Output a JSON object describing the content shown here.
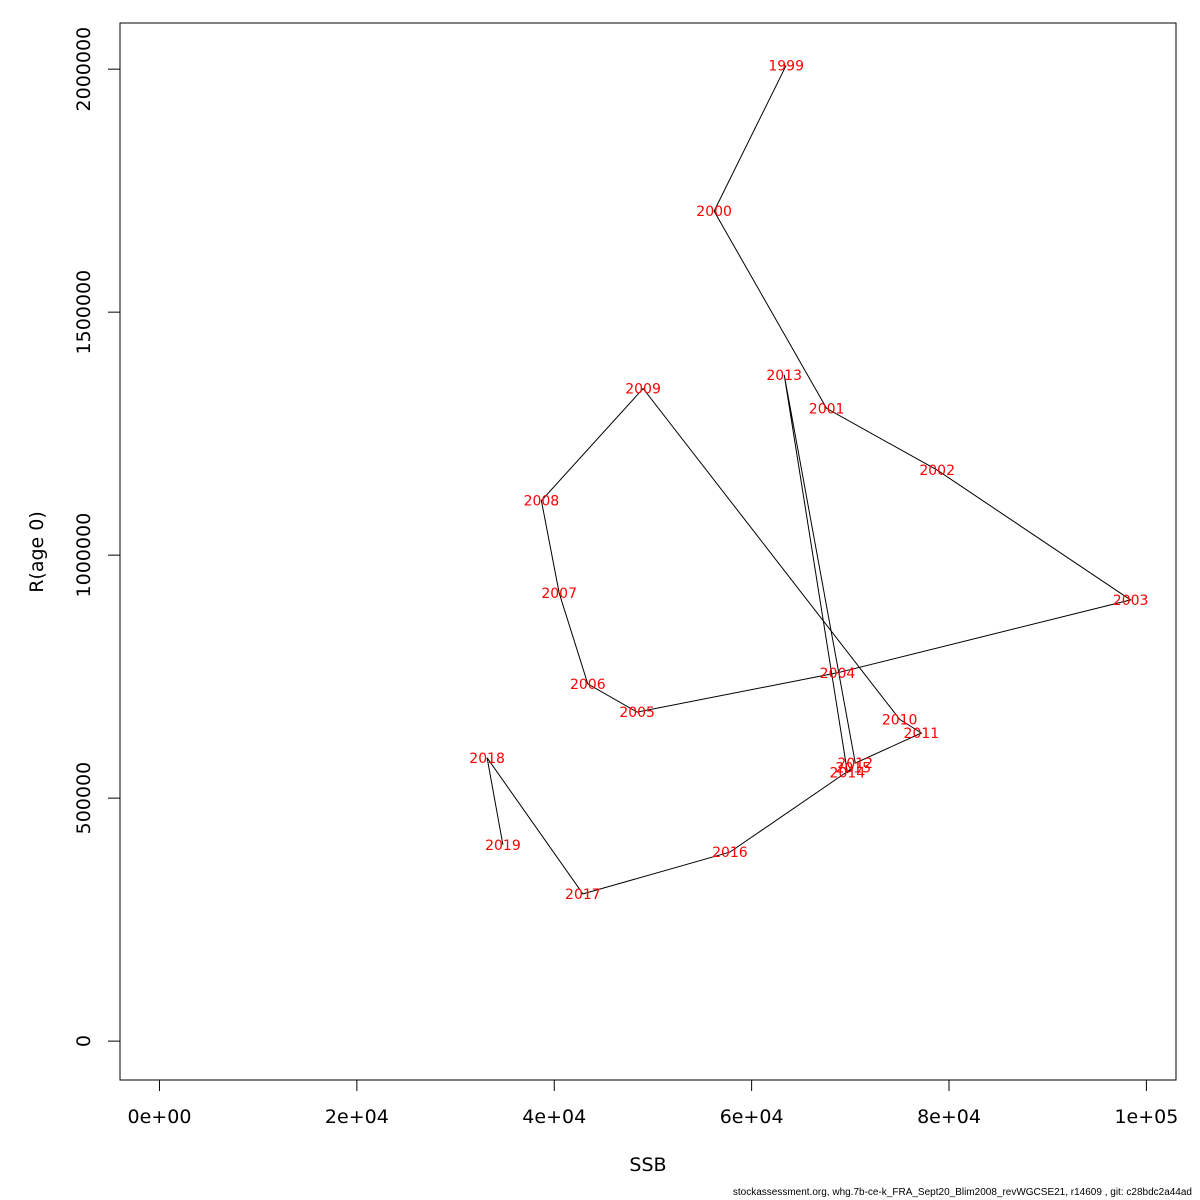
{
  "chart_data": {
    "type": "line",
    "xlabel": "SSB",
    "ylabel": "R(age 0)",
    "xlim": [
      -4000,
      103000
    ],
    "ylim": [
      -80000,
      2095000
    ],
    "x_ticks": [
      0,
      20000,
      40000,
      60000,
      80000,
      100000
    ],
    "x_tick_labels": [
      "0e+00",
      "2e+04",
      "4e+04",
      "6e+04",
      "8e+04",
      "1e+05"
    ],
    "y_ticks": [
      0,
      500000,
      1000000,
      1500000,
      2000000
    ],
    "y_tick_labels": [
      "0",
      "500000",
      "1000000",
      "1500000",
      "2000000"
    ],
    "grid": false,
    "legend": "none",
    "line_color": "#000000",
    "label_color": "#ff0000",
    "points": [
      {
        "label": "1999",
        "x": 63500,
        "y": 2008000
      },
      {
        "label": "2000",
        "x": 56200,
        "y": 1708000
      },
      {
        "label": "2001",
        "x": 67600,
        "y": 1302000
      },
      {
        "label": "2002",
        "x": 78800,
        "y": 1175000
      },
      {
        "label": "2003",
        "x": 98400,
        "y": 908000
      },
      {
        "label": "2004",
        "x": 68700,
        "y": 758000
      },
      {
        "label": "2005",
        "x": 48400,
        "y": 677000
      },
      {
        "label": "2006",
        "x": 43400,
        "y": 735000
      },
      {
        "label": "2007",
        "x": 40500,
        "y": 922000
      },
      {
        "label": "2008",
        "x": 38700,
        "y": 1112000
      },
      {
        "label": "2009",
        "x": 49000,
        "y": 1343000
      },
      {
        "label": "2010",
        "x": 75000,
        "y": 662000
      },
      {
        "label": "2011",
        "x": 77200,
        "y": 634000
      },
      {
        "label": "2012",
        "x": 70500,
        "y": 572000
      },
      {
        "label": "2013",
        "x": 63300,
        "y": 1371000
      },
      {
        "label": "2014",
        "x": 69700,
        "y": 553000
      },
      {
        "label": "2015",
        "x": 70300,
        "y": 563000
      },
      {
        "label": "2016",
        "x": 57800,
        "y": 389000
      },
      {
        "label": "2017",
        "x": 42900,
        "y": 303000
      },
      {
        "label": "2018",
        "x": 33200,
        "y": 583000
      },
      {
        "label": "2019",
        "x": 34800,
        "y": 404000
      }
    ]
  },
  "footer_text": "stockassessment.org, whg.7b-ce-k_FRA_Sept20_Blim2008_revWGCSE21, r14609 , git: c28bdc2a44ad"
}
